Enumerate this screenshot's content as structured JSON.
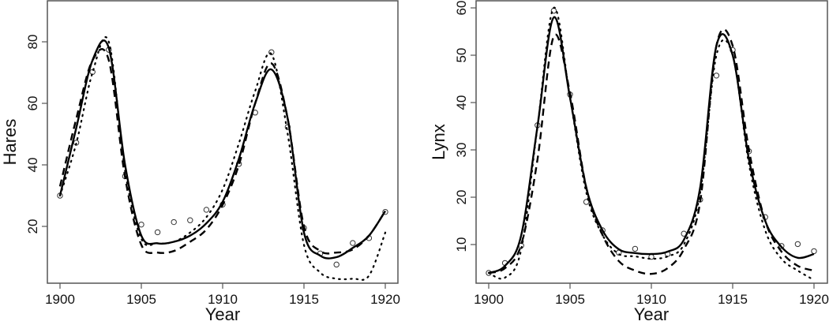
{
  "chart_data": [
    {
      "type": "line",
      "title": "",
      "xlabel": "Year",
      "ylabel": "Hares",
      "xlim": [
        1899.2,
        1920.8
      ],
      "ylim": [
        2,
        92
      ],
      "xticks": [
        1900,
        1905,
        1910,
        1915,
        1920
      ],
      "yticks": [
        20,
        40,
        60,
        80
      ],
      "grid": false,
      "legend": null,
      "x": [
        1900,
        1901,
        1902,
        1903,
        1904,
        1905,
        1906,
        1907,
        1908,
        1909,
        1910,
        1911,
        1912,
        1913,
        1914,
        1915,
        1916,
        1917,
        1918,
        1919,
        1920
      ],
      "series": [
        {
          "name": "observed",
          "style": "points-open-circle",
          "values": [
            30,
            47.2,
            70.2,
            77.4,
            36.3,
            20.6,
            18.1,
            21.4,
            22,
            25.4,
            27.1,
            40.3,
            57,
            76.6,
            52.3,
            19.5,
            11.2,
            7.6,
            14.6,
            16.2,
            24.7
          ]
        },
        {
          "name": "fit-solid",
          "style": "solid",
          "values": [
            30,
            52,
            74,
            78,
            40,
            17,
            14.5,
            15,
            17,
            21,
            28,
            42,
            60,
            71,
            55,
            18,
            10.5,
            10,
            13,
            17,
            25
          ]
        },
        {
          "name": "fit-dashed",
          "style": "dashed",
          "values": [
            33,
            55,
            74,
            74,
            36,
            14,
            11.5,
            12,
            15,
            19,
            27,
            40,
            60,
            73,
            55,
            20,
            12,
            11.5,
            12.5,
            17,
            25
          ]
        },
        {
          "name": "fit-dotted",
          "style": "dotted",
          "values": [
            30,
            47,
            70,
            80,
            38,
            16,
            14.5,
            15,
            18,
            23,
            32,
            47,
            64,
            76,
            50,
            14,
            5,
            3,
            3,
            4,
            18
          ]
        }
      ]
    },
    {
      "type": "line",
      "title": "",
      "xlabel": "Year",
      "ylabel": "Lynx",
      "xlim": [
        1899.2,
        1920.8
      ],
      "ylim": [
        2,
        62
      ],
      "xticks": [
        1900,
        1905,
        1910,
        1915,
        1920
      ],
      "yticks": [
        10,
        20,
        30,
        40,
        50,
        60
      ],
      "grid": false,
      "legend": null,
      "x": [
        1900,
        1901,
        1902,
        1903,
        1904,
        1905,
        1906,
        1907,
        1908,
        1909,
        1910,
        1911,
        1912,
        1913,
        1914,
        1915,
        1916,
        1917,
        1918,
        1919,
        1920
      ],
      "series": [
        {
          "name": "observed",
          "style": "points-open-circle",
          "values": [
            4,
            6.1,
            9.8,
            35.2,
            59.4,
            41.7,
            19,
            13,
            8.3,
            9.1,
            7.4,
            8,
            12.3,
            19.5,
            45.7,
            51.1,
            29.7,
            15.8,
            9.7,
            10.1,
            8.6
          ]
        },
        {
          "name": "fit-solid",
          "style": "solid",
          "values": [
            4,
            5.5,
            12,
            35,
            58,
            41,
            22,
            13,
            9,
            8.2,
            8,
            8.5,
            11,
            22,
            52,
            50,
            28,
            15,
            9.5,
            7.2,
            8
          ]
        },
        {
          "name": "fit-dashed",
          "style": "dashed",
          "values": [
            4,
            5,
            10,
            28,
            54,
            42,
            22,
            12,
            6.5,
            4.5,
            3.8,
            5,
            9,
            19,
            52,
            52,
            30,
            15,
            8.5,
            5.5,
            4.5
          ]
        },
        {
          "name": "fit-dotted",
          "style": "dotted",
          "values": [
            4,
            3,
            9,
            35,
            60,
            41,
            21,
            12,
            8,
            7.5,
            7,
            7.5,
            10,
            21,
            50,
            50,
            27,
            13,
            7,
            4.5,
            2.5
          ]
        }
      ]
    }
  ],
  "axes": {
    "left": {
      "xlabel": "Year",
      "ylabel": "Hares",
      "xticks": [
        "1900",
        "1905",
        "1910",
        "1915",
        "1920"
      ],
      "yticks": [
        "20",
        "40",
        "60",
        "80"
      ]
    },
    "right": {
      "xlabel": "Year",
      "ylabel": "Lynx",
      "xticks": [
        "1900",
        "1905",
        "1910",
        "1915",
        "1920"
      ],
      "yticks": [
        "10",
        "20",
        "30",
        "40",
        "50",
        "60"
      ]
    }
  }
}
